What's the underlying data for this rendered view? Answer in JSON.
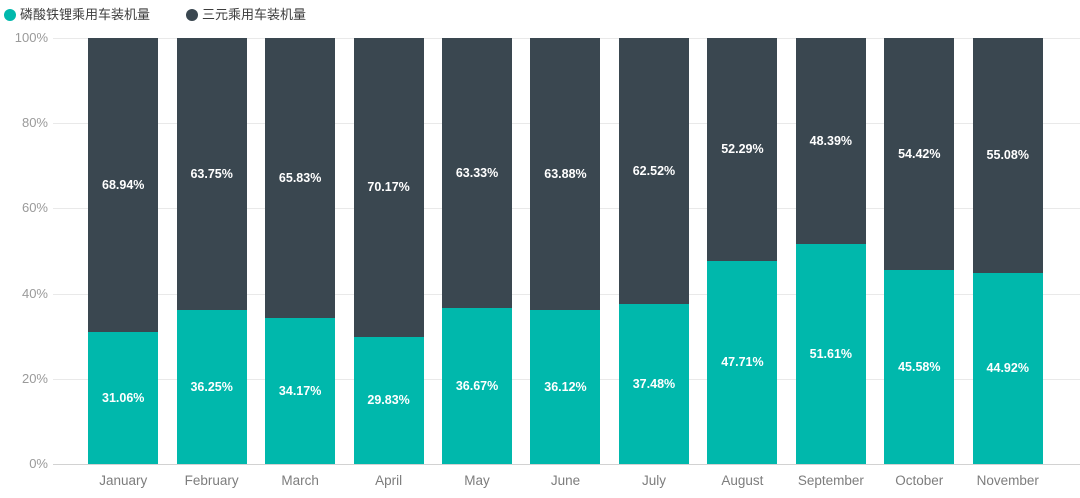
{
  "chart_data": {
    "type": "bar",
    "stacked": true,
    "stack_total": 100,
    "title": "",
    "xlabel": "",
    "ylabel": "",
    "ylim": [
      0,
      100
    ],
    "grid": true,
    "legend_position": "top-left",
    "value_label_suffix": "%",
    "y_ticks": [
      "100%",
      "80%",
      "60%",
      "40%",
      "20%",
      "0%"
    ],
    "categories": [
      "January",
      "February",
      "March",
      "April",
      "May",
      "June",
      "July",
      "August",
      "September",
      "October",
      "November"
    ],
    "series": [
      {
        "id": "lfp",
        "name": "磷酸铁锂乘用车装机量",
        "color": "#00b8ac",
        "stack_position": "bottom",
        "values": [
          31.06,
          36.25,
          34.17,
          29.83,
          36.67,
          36.12,
          37.48,
          47.71,
          51.61,
          45.58,
          44.92
        ]
      },
      {
        "id": "ternary",
        "name": "三元乘用车装机量",
        "color": "#3a4750",
        "stack_position": "top",
        "values": [
          68.94,
          63.75,
          65.83,
          70.17,
          63.33,
          63.88,
          62.52,
          52.29,
          48.39,
          54.42,
          55.08
        ]
      }
    ]
  },
  "colors": {
    "background": "#ffffff",
    "gridline": "#e9e9e9",
    "axis_line": "#d2d2d2",
    "y_tick_text": "#9a9a9a",
    "x_tick_text": "#7d7d7d",
    "legend_text": "#3d3d3d",
    "value_label_text": "#ffffff"
  }
}
